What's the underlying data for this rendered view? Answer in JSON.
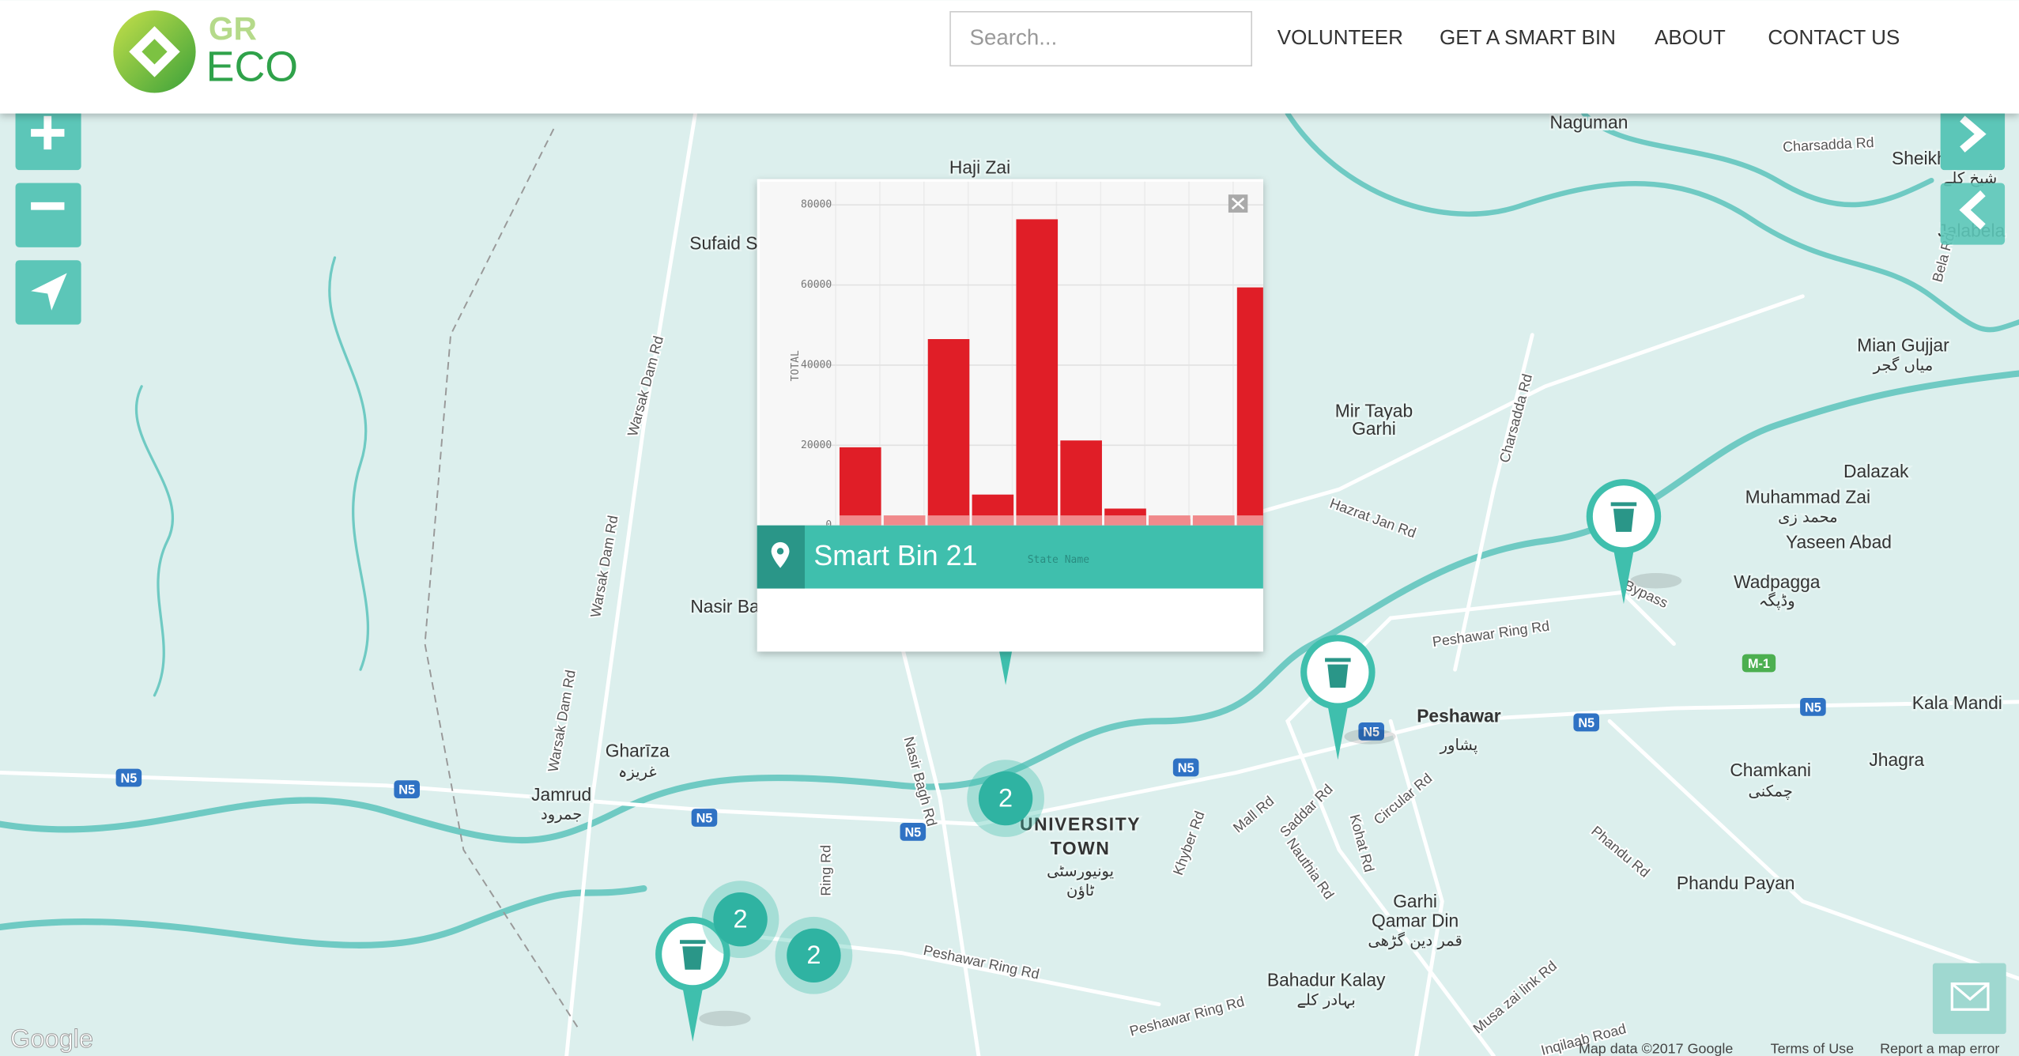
{
  "header": {
    "logo_top": "GR",
    "logo_bottom": "ECO",
    "search_placeholder": "Search...",
    "nav": [
      "VOLUNTEER",
      "GET A SMART BIN",
      "ABOUT",
      "CONTACT US"
    ]
  },
  "popup": {
    "title": "Smart Bin 21"
  },
  "chart_data": {
    "type": "bar",
    "ylabel": "TOTAL",
    "xlabel": "State Name",
    "categories": [
      null,
      null,
      null,
      null,
      null,
      null,
      null,
      null,
      null,
      null
    ],
    "series": [
      {
        "color": "#e01e27",
        "values": [
          19500,
          0,
          46500,
          7700,
          76400,
          21200,
          4200,
          1600,
          1900,
          59400
        ]
      },
      {
        "color": "#f08a8c",
        "values": [
          2500,
          2500,
          2500,
          2500,
          2500,
          2500,
          2500,
          2500,
          2500,
          2500
        ]
      }
    ],
    "ylim": [
      0,
      80000
    ],
    "yticks": [
      0,
      20000,
      40000,
      60000,
      80000
    ],
    "grid": true
  },
  "map": {
    "places": [
      "Naguman",
      "Haji Zai",
      "Sheikh Kalay",
      "Jalabela",
      "Sufaid S",
      "Mian Gujjar",
      "Mir Tayab",
      "Garhi",
      "Dalazak",
      "Muhammad Zai",
      "Yaseen Abad",
      "Wadpagga",
      "Nasir Ba",
      "Peshawar",
      "Kala Mandi",
      "Jhagra",
      "Chamkani",
      "Gharīza",
      "Jamrud",
      "UNIVERSITY",
      "TOWN",
      "Garhi",
      "Qamar Din",
      "Phandu Payan",
      "Bahadur Kalay"
    ],
    "urdu": [
      "شیخ کلے",
      "میاں گجر",
      "محمد زی",
      "وڈپگہ",
      "پشاور",
      "چمکنی",
      "غریزہ",
      "جمرود",
      "یونیورسٹی",
      "ٹاؤن",
      "قمر دین گڑھی",
      "بہادر کلے"
    ],
    "roads": [
      "Warsak Dam Rd",
      "Warsak Dam Rd",
      "Warsak Dam Rd",
      "Charsadda Rd",
      "Charsadda Rd",
      "Hazrat Jan Rd",
      "Peshawar Ring Rd",
      "Peshawar Ring Rd",
      "Peshawar Ring Rd",
      "Bypass",
      "Nasir Bagh Rd",
      "Ring Rd",
      "Khyber Rd",
      "Mall Rd",
      "Saddar Rd",
      "Circular Rd",
      "Kohat Rd",
      "Nauthia Rd",
      "Phandu Rd",
      "Musa zai link Rd",
      "Bela Rd",
      "Inqilaab Road"
    ],
    "shields": [
      "N5",
      "N5",
      "N5",
      "N5",
      "N5",
      "N5",
      "N5",
      "N5",
      "M-1"
    ],
    "clusters": [
      2,
      2,
      2
    ],
    "attribution": {
      "logo": "Google",
      "data": "Map data ©2017 Google",
      "terms": "Terms of Use",
      "report": "Report a map error"
    }
  }
}
